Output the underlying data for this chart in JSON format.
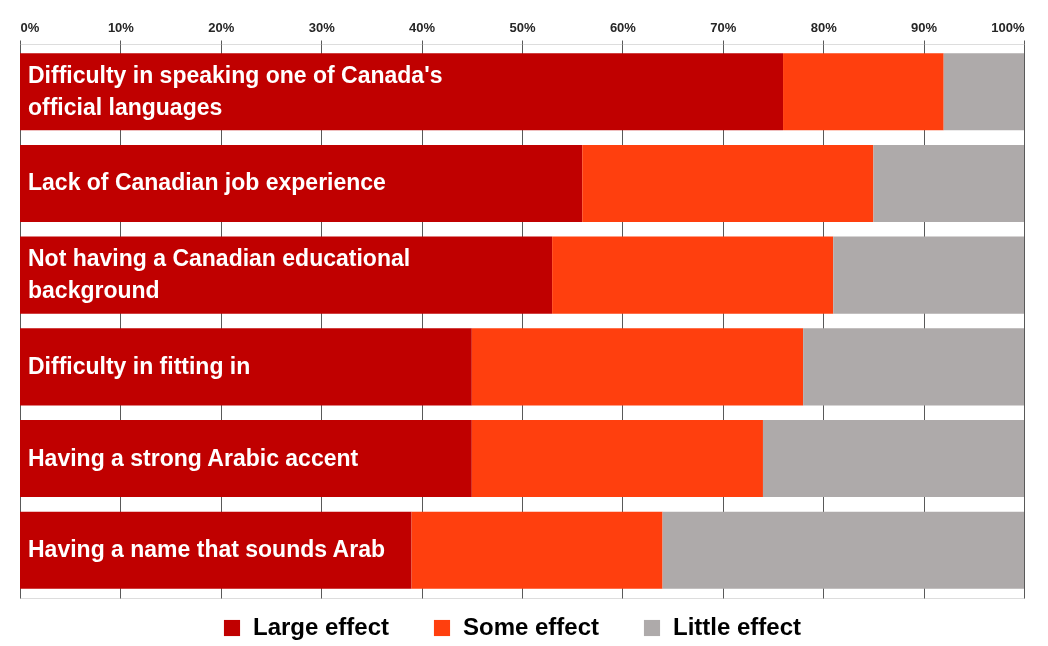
{
  "chart_data": {
    "type": "bar",
    "orientation": "horizontal",
    "stacked": true,
    "categories": [
      "Difficulty in speaking one of Canada's official languages",
      "Lack of Canadian job experience",
      "Not having a Canadian educational background",
      "Difficulty in fitting in",
      "Having a strong Arabic accent",
      "Having a name that sounds Arab"
    ],
    "series": [
      {
        "name": "Large effect",
        "color": "#c00000",
        "values": [
          76,
          56,
          53,
          45,
          45,
          39
        ]
      },
      {
        "name": "Some effect",
        "color": "#ff3f0e",
        "values": [
          16,
          29,
          28,
          33,
          29,
          25
        ]
      },
      {
        "name": "Little effect",
        "color": "#aeaaaa",
        "values": [
          8,
          15,
          19,
          22,
          26,
          36
        ]
      }
    ],
    "xlim": [
      0,
      100
    ],
    "xticks": [
      {
        "value": 0,
        "label": "0%"
      },
      {
        "value": 10,
        "label": "10%"
      },
      {
        "value": 20,
        "label": "20%"
      },
      {
        "value": 30,
        "label": "30%"
      },
      {
        "value": 40,
        "label": "40%"
      },
      {
        "value": 50,
        "label": "50%"
      },
      {
        "value": 60,
        "label": "60%"
      },
      {
        "value": 70,
        "label": "70%"
      },
      {
        "value": 80,
        "label": "80%"
      },
      {
        "value": 90,
        "label": "90%"
      },
      {
        "value": 100,
        "label": "100%"
      }
    ],
    "grid": "x",
    "legend": "bottom"
  }
}
